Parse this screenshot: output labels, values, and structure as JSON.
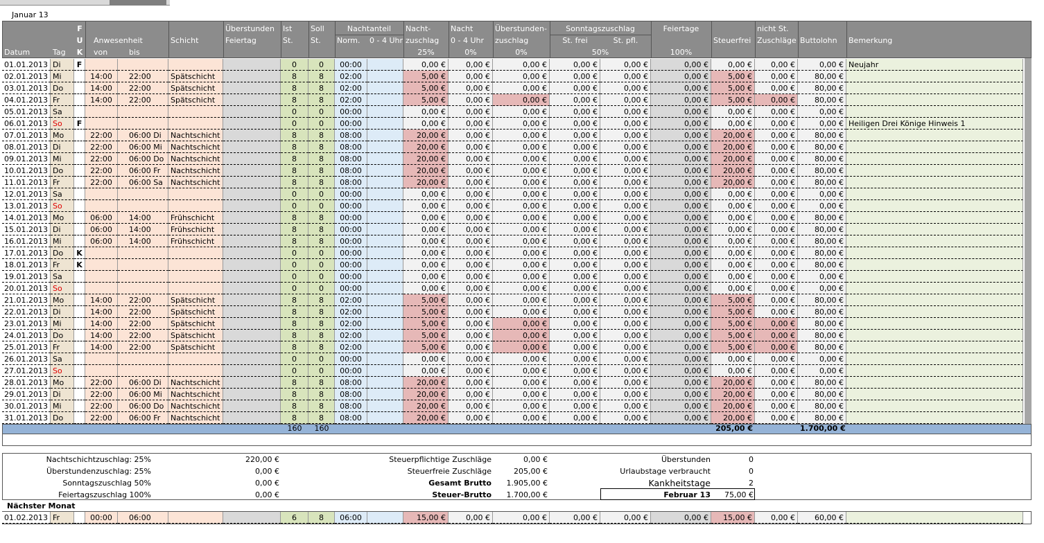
{
  "sheet_title": "Januar 13",
  "header": {
    "f": "F",
    "u": "U",
    "k": "K",
    "anwesenheit": "Anwesenheit",
    "schicht": "Schicht",
    "ueberstunden1": "Überstunden",
    "ueberstunden2": "Feiertag",
    "ist1": "Ist",
    "ist2": "St.",
    "soll1": "Soll",
    "soll2": "St.",
    "nachtanteil": "Nachtanteil",
    "norm": "Norm.",
    "uhr04": "0 - 4 Uhr",
    "nachtzuschlag1": "Nacht-",
    "nachtzuschlag2": "zuschlag",
    "nacht04_1": "Nacht",
    "nacht04_2": "0 - 4 Uhr",
    "uezuschlag1": "Überstunden-",
    "uezuschlag2": "zuschlag",
    "sonntag": "Sonntagszuschlag",
    "stfrei": "St. frei",
    "stpfl": "St. pfl.",
    "feiertage": "Feiertage",
    "steuerfrei": "Steuerfrei",
    "nichtst1": "nicht St.",
    "nichtst2": "Zuschläge",
    "brutto": "Buttolohn",
    "bemerkung": "Bemerkung",
    "datum": "Datum",
    "tag": "Tag",
    "von": "von",
    "bis": "bis",
    "p25": "25%",
    "p0a": "0%",
    "p0b": "0%",
    "p50": "50%",
    "p100": "100%"
  },
  "rows": [
    {
      "cells": [
        "01.01.2013",
        "Di",
        "F",
        null,
        null,
        null,
        null,
        "0",
        "0",
        "00:00",
        null,
        "0,00 €",
        "0,00 €",
        "0,00 €",
        "0,00 €",
        "0,00 €",
        "0,00 €",
        "0,00 €",
        "0,00 €",
        "0,00 €",
        "Neujahr"
      ]
    },
    {
      "cells": [
        "02.01.2013",
        "Mi",
        null,
        "14:00",
        "22:00",
        "Spätschicht",
        null,
        "8",
        "8",
        "02:00",
        null,
        "5,00 €",
        "0,00 €",
        "0,00 €",
        "0,00 €",
        "0,00 €",
        "0,00 €",
        "5,00 €",
        "0,00 €",
        "80,00 €",
        null
      ],
      "pink": [
        11,
        17
      ]
    },
    {
      "cells": [
        "03.01.2013",
        "Do",
        null,
        "14:00",
        "22:00",
        "Spätschicht",
        null,
        "8",
        "8",
        "02:00",
        null,
        "5,00 €",
        "0,00 €",
        "0,00 €",
        "0,00 €",
        "0,00 €",
        "0,00 €",
        "5,00 €",
        "0,00 €",
        "80,00 €",
        null
      ],
      "pink": [
        11,
        17
      ]
    },
    {
      "cells": [
        "04.01.2013",
        "Fr",
        null,
        "14:00",
        "22:00",
        "Spätschicht",
        null,
        "8",
        "8",
        "02:00",
        null,
        "5,00 €",
        "0,00 €",
        "0,00 €",
        "0,00 €",
        "0,00 €",
        "0,00 €",
        "5,00 €",
        "0,00 €",
        "80,00 €",
        null
      ],
      "pink": [
        11,
        13,
        17,
        18
      ]
    },
    {
      "cells": [
        "05.01.2013",
        "Sa",
        null,
        null,
        null,
        null,
        null,
        "0",
        "0",
        "00:00",
        null,
        "0,00 €",
        "0,00 €",
        "0,00 €",
        "0,00 €",
        "0,00 €",
        "0,00 €",
        "0,00 €",
        "0,00 €",
        "0,00 €",
        null
      ]
    },
    {
      "cells": [
        "06.01.2013",
        "So",
        "F",
        null,
        null,
        null,
        null,
        "0",
        "0",
        "00:00",
        null,
        "0,00 €",
        "0,00 €",
        "0,00 €",
        "0,00 €",
        "0,00 €",
        "0,00 €",
        "0,00 €",
        "0,00 €",
        "0,00 €",
        "Heiligen Drei Könige  Hinweis 1"
      ],
      "red_tag": true
    },
    {
      "cells": [
        "07.01.2013",
        "Mo",
        null,
        "22:00",
        "06:00 Di",
        "Nachtschicht",
        null,
        "8",
        "8",
        "08:00",
        null,
        "20,00 €",
        "0,00 €",
        "0,00 €",
        "0,00 €",
        "0,00 €",
        "0,00 €",
        "20,00 €",
        "0,00 €",
        "80,00 €",
        null
      ],
      "pink": [
        11,
        17
      ]
    },
    {
      "cells": [
        "08.01.2013",
        "Di",
        null,
        "22:00",
        "06:00 Mi",
        "Nachtschicht",
        null,
        "8",
        "8",
        "08:00",
        null,
        "20,00 €",
        "0,00 €",
        "0,00 €",
        "0,00 €",
        "0,00 €",
        "0,00 €",
        "20,00 €",
        "0,00 €",
        "80,00 €",
        null
      ],
      "pink": [
        11,
        17
      ]
    },
    {
      "cells": [
        "09.01.2013",
        "Mi",
        null,
        "22:00",
        "06:00 Do",
        "Nachtschicht",
        null,
        "8",
        "8",
        "08:00",
        null,
        "20,00 €",
        "0,00 €",
        "0,00 €",
        "0,00 €",
        "0,00 €",
        "0,00 €",
        "20,00 €",
        "0,00 €",
        "80,00 €",
        null
      ],
      "pink": [
        11,
        17
      ]
    },
    {
      "cells": [
        "10.01.2013",
        "Do",
        null,
        "22:00",
        "06:00 Fr",
        "Nachtschicht",
        null,
        "8",
        "8",
        "08:00",
        null,
        "20,00 €",
        "0,00 €",
        "0,00 €",
        "0,00 €",
        "0,00 €",
        "0,00 €",
        "20,00 €",
        "0,00 €",
        "80,00 €",
        null
      ],
      "pink": [
        11,
        17
      ]
    },
    {
      "cells": [
        "11.01.2013",
        "Fr",
        null,
        "22:00",
        "06:00 Sa",
        "Nachtschicht",
        null,
        "8",
        "8",
        "08:00",
        null,
        "20,00 €",
        "0,00 €",
        "0,00 €",
        "0,00 €",
        "0,00 €",
        "0,00 €",
        "20,00 €",
        "0,00 €",
        "80,00 €",
        null
      ],
      "pink": [
        11,
        17
      ]
    },
    {
      "cells": [
        "12.01.2013",
        "Sa",
        null,
        null,
        null,
        null,
        null,
        "0",
        "0",
        "00:00",
        null,
        "0,00 €",
        "0,00 €",
        "0,00 €",
        "0,00 €",
        "0,00 €",
        "0,00 €",
        "0,00 €",
        "0,00 €",
        "0,00 €",
        null
      ]
    },
    {
      "cells": [
        "13.01.2013",
        "So",
        null,
        null,
        null,
        null,
        null,
        "0",
        "0",
        "00:00",
        null,
        "0,00 €",
        "0,00 €",
        "0,00 €",
        "0,00 €",
        "0,00 €",
        "0,00 €",
        "0,00 €",
        "0,00 €",
        "0,00 €",
        null
      ],
      "red_tag": true
    },
    {
      "cells": [
        "14.01.2013",
        "Mo",
        null,
        "06:00",
        "14:00",
        "Frühschicht",
        null,
        "8",
        "8",
        "00:00",
        null,
        "0,00 €",
        "0,00 €",
        "0,00 €",
        "0,00 €",
        "0,00 €",
        "0,00 €",
        "0,00 €",
        "0,00 €",
        "80,00 €",
        null
      ]
    },
    {
      "cells": [
        "15.01.2013",
        "Di",
        null,
        "06:00",
        "14:00",
        "Frühschicht",
        null,
        "8",
        "8",
        "00:00",
        null,
        "0,00 €",
        "0,00 €",
        "0,00 €",
        "0,00 €",
        "0,00 €",
        "0,00 €",
        "0,00 €",
        "0,00 €",
        "80,00 €",
        null
      ]
    },
    {
      "cells": [
        "16.01.2013",
        "Mi",
        null,
        "06:00",
        "14:00",
        "Frühschicht",
        null,
        "8",
        "8",
        "00:00",
        null,
        "0,00 €",
        "0,00 €",
        "0,00 €",
        "0,00 €",
        "0,00 €",
        "0,00 €",
        "0,00 €",
        "0,00 €",
        "80,00 €",
        null
      ]
    },
    {
      "cells": [
        "17.01.2013",
        "Do",
        "K",
        null,
        null,
        null,
        null,
        "0",
        "0",
        "00:00",
        null,
        "0,00 €",
        "0,00 €",
        "0,00 €",
        "0,00 €",
        "0,00 €",
        "0,00 €",
        "0,00 €",
        "0,00 €",
        "80,00 €",
        null
      ]
    },
    {
      "cells": [
        "18.01.2013",
        "Fr",
        "K",
        null,
        null,
        null,
        null,
        "0",
        "0",
        "00:00",
        null,
        "0,00 €",
        "0,00 €",
        "0,00 €",
        "0,00 €",
        "0,00 €",
        "0,00 €",
        "0,00 €",
        "0,00 €",
        "80,00 €",
        null
      ]
    },
    {
      "cells": [
        "19.01.2013",
        "Sa",
        null,
        null,
        null,
        null,
        null,
        "0",
        "0",
        "00:00",
        null,
        "0,00 €",
        "0,00 €",
        "0,00 €",
        "0,00 €",
        "0,00 €",
        "0,00 €",
        "0,00 €",
        "0,00 €",
        "0,00 €",
        null
      ]
    },
    {
      "cells": [
        "20.01.2013",
        "So",
        null,
        null,
        null,
        null,
        null,
        "0",
        "0",
        "00:00",
        null,
        "0,00 €",
        "0,00 €",
        "0,00 €",
        "0,00 €",
        "0,00 €",
        "0,00 €",
        "0,00 €",
        "0,00 €",
        "0,00 €",
        null
      ],
      "red_tag": true
    },
    {
      "cells": [
        "21.01.2013",
        "Mo",
        null,
        "14:00",
        "22:00",
        "Spätschicht",
        null,
        "8",
        "8",
        "02:00",
        null,
        "5,00 €",
        "0,00 €",
        "0,00 €",
        "0,00 €",
        "0,00 €",
        "0,00 €",
        "5,00 €",
        "0,00 €",
        "80,00 €",
        null
      ],
      "pink": [
        11,
        17
      ]
    },
    {
      "cells": [
        "22.01.2013",
        "Di",
        null,
        "14:00",
        "22:00",
        "Spätschicht",
        null,
        "8",
        "8",
        "02:00",
        null,
        "5,00 €",
        "0,00 €",
        "0,00 €",
        "0,00 €",
        "0,00 €",
        "0,00 €",
        "5,00 €",
        "0,00 €",
        "80,00 €",
        null
      ],
      "pink": [
        11,
        17
      ]
    },
    {
      "cells": [
        "23.01.2013",
        "Mi",
        null,
        "14:00",
        "22:00",
        "Spätschicht",
        null,
        "8",
        "8",
        "02:00",
        null,
        "5,00 €",
        "0,00 €",
        "0,00 €",
        "0,00 €",
        "0,00 €",
        "0,00 €",
        "5,00 €",
        "0,00 €",
        "80,00 €",
        null
      ],
      "pink": [
        11,
        13,
        17,
        18
      ]
    },
    {
      "cells": [
        "24.01.2013",
        "Do",
        null,
        "14:00",
        "22:00",
        "Spätschicht",
        null,
        "8",
        "8",
        "02:00",
        null,
        "5,00 €",
        "0,00 €",
        "0,00 €",
        "0,00 €",
        "0,00 €",
        "0,00 €",
        "5,00 €",
        "0,00 €",
        "80,00 €",
        null
      ],
      "pink": [
        11,
        13,
        17,
        18
      ]
    },
    {
      "cells": [
        "25.01.2013",
        "Fr",
        null,
        "14:00",
        "22:00",
        "Spätschicht",
        null,
        "8",
        "8",
        "02:00",
        null,
        "5,00 €",
        "0,00 €",
        "0,00 €",
        "0,00 €",
        "0,00 €",
        "0,00 €",
        "5,00 €",
        "0,00 €",
        "80,00 €",
        null
      ],
      "pink": [
        11,
        13,
        17,
        18
      ]
    },
    {
      "cells": [
        "26.01.2013",
        "Sa",
        null,
        null,
        null,
        null,
        null,
        "0",
        "0",
        "00:00",
        null,
        "0,00 €",
        "0,00 €",
        "0,00 €",
        "0,00 €",
        "0,00 €",
        "0,00 €",
        "0,00 €",
        "0,00 €",
        "0,00 €",
        null
      ]
    },
    {
      "cells": [
        "27.01.2013",
        "So",
        null,
        null,
        null,
        null,
        null,
        "0",
        "0",
        "00:00",
        null,
        "0,00 €",
        "0,00 €",
        "0,00 €",
        "0,00 €",
        "0,00 €",
        "0,00 €",
        "0,00 €",
        "0,00 €",
        "0,00 €",
        null
      ],
      "red_tag": true
    },
    {
      "cells": [
        "28.01.2013",
        "Mo",
        null,
        "22:00",
        "06:00 Di",
        "Nachtschicht",
        null,
        "8",
        "8",
        "08:00",
        null,
        "20,00 €",
        "0,00 €",
        "0,00 €",
        "0,00 €",
        "0,00 €",
        "0,00 €",
        "20,00 €",
        "0,00 €",
        "80,00 €",
        null
      ],
      "pink": [
        11,
        17
      ]
    },
    {
      "cells": [
        "29.01.2013",
        "Di",
        null,
        "22:00",
        "06:00 Mi",
        "Nachtschicht",
        null,
        "8",
        "8",
        "08:00",
        null,
        "20,00 €",
        "0,00 €",
        "0,00 €",
        "0,00 €",
        "0,00 €",
        "0,00 €",
        "20,00 €",
        "0,00 €",
        "80,00 €",
        null
      ],
      "pink": [
        11,
        17
      ]
    },
    {
      "cells": [
        "30.01.2013",
        "Mi",
        null,
        "22:00",
        "06:00 Do",
        "Nachtschicht",
        null,
        "8",
        "8",
        "08:00",
        null,
        "20,00 €",
        "0,00 €",
        "0,00 €",
        "0,00 €",
        "0,00 €",
        "0,00 €",
        "20,00 €",
        "0,00 €",
        "80,00 €",
        null
      ],
      "pink": [
        11,
        17
      ]
    },
    {
      "cells": [
        "31.01.2013",
        "Do",
        null,
        "22:00",
        "06:00 Fr",
        "Nachtschicht",
        null,
        "8",
        "8",
        "08:00",
        null,
        "20,00 €",
        "0,00 €",
        "0,00 €",
        "0,00 €",
        "0,00 €",
        "0,00 €",
        "20,00 €",
        "0,00 €",
        "80,00 €",
        null
      ],
      "pink": [
        11,
        17
      ]
    }
  ],
  "totals": {
    "ist": "160",
    "soll": "160",
    "steuerfrei": "205,00 €",
    "brutto": "1.700,00 €"
  },
  "summary": {
    "left": [
      [
        "Nachtschichtzuschlag: 25%",
        "220,00 €"
      ],
      [
        "Überstundenzuschlag: 25%",
        "0,00 €"
      ],
      [
        "Sonntagszuschlag 50%",
        "0,00 €"
      ],
      [
        "Feiertagszuschlag 100%",
        "0,00 €"
      ]
    ],
    "middle": [
      [
        "Steuerpflichtige Zuschläge",
        "0,00 €"
      ],
      [
        "Steuerfreie Zuschläge",
        "205,00 €"
      ],
      [
        "Gesamt Brutto",
        "1.905,00 €"
      ],
      [
        "Steuer-Brutto",
        "1.700,00 €"
      ]
    ],
    "right": [
      [
        "Überstunden",
        "0"
      ],
      [
        "Urlaubstage verbraucht",
        "0"
      ],
      [
        "Kankheitstage",
        "2"
      ],
      [
        "Februar 13",
        "75,00 €"
      ]
    ]
  },
  "next_month": {
    "title": "Nächster Monat",
    "cells": [
      "01.02.2013",
      "Fr",
      null,
      "00:00",
      "06:00",
      null,
      null,
      "6",
      "8",
      "06:00",
      null,
      "15,00 €",
      "0,00 €",
      "0,00 €",
      "0,00 €",
      "0,00 €",
      "0,00 €",
      "15,00 €",
      "0,00 €",
      "60,00 €",
      null
    ],
    "pink": [
      11,
      17
    ]
  }
}
